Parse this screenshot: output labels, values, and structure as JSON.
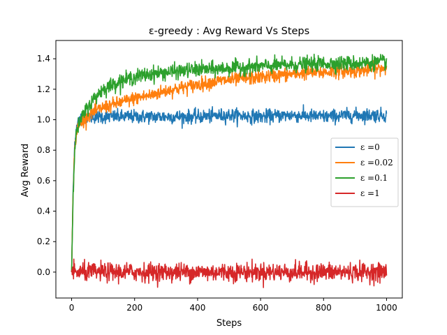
{
  "chart_data": {
    "type": "line",
    "title": "ε-greedy : Avg Reward Vs Steps",
    "xlabel": "Steps",
    "ylabel": "Avg Reward",
    "xlim": [
      -50,
      1050
    ],
    "ylim": [
      -0.17,
      1.52
    ],
    "xticks": [
      0,
      200,
      400,
      600,
      800,
      1000
    ],
    "yticks": [
      0.0,
      0.2,
      0.4,
      0.6,
      0.8,
      1.0,
      1.2,
      1.4
    ],
    "xtick_labels": [
      "0",
      "200",
      "400",
      "600",
      "800",
      "1000"
    ],
    "ytick_labels": [
      "0.0",
      "0.2",
      "0.4",
      "0.6",
      "0.8",
      "1.0",
      "1.2",
      "1.4"
    ],
    "grid": false,
    "legend_position": "center-right",
    "series": [
      {
        "name": "ε =0",
        "color": "#1f77b4",
        "x": [
          0,
          5,
          10,
          15,
          20,
          30,
          50,
          100,
          150,
          200,
          300,
          400,
          500,
          600,
          700,
          800,
          900,
          1000
        ],
        "y": [
          0.0,
          0.55,
          0.85,
          0.95,
          0.99,
          1.01,
          1.02,
          1.02,
          1.02,
          1.02,
          1.02,
          1.02,
          1.03,
          1.02,
          1.03,
          1.02,
          1.03,
          1.03
        ],
        "noise": 0.022
      },
      {
        "name": "ε =0.02",
        "color": "#ff7f0e",
        "x": [
          0,
          5,
          10,
          15,
          20,
          30,
          50,
          100,
          150,
          200,
          250,
          300,
          350,
          400,
          450,
          500,
          550,
          600,
          650,
          700,
          750,
          800,
          850,
          900,
          950,
          1000
        ],
        "y": [
          0.0,
          0.55,
          0.82,
          0.9,
          0.95,
          0.98,
          1.03,
          1.08,
          1.11,
          1.14,
          1.16,
          1.19,
          1.21,
          1.23,
          1.25,
          1.26,
          1.27,
          1.28,
          1.29,
          1.3,
          1.31,
          1.31,
          1.32,
          1.32,
          1.33,
          1.34
        ],
        "noise": 0.022
      },
      {
        "name": "ε =0.1",
        "color": "#2ca02c",
        "x": [
          0,
          5,
          10,
          15,
          20,
          30,
          50,
          80,
          100,
          150,
          200,
          250,
          300,
          350,
          400,
          450,
          500,
          600,
          700,
          800,
          900,
          1000
        ],
        "y": [
          0.0,
          0.55,
          0.82,
          0.9,
          0.95,
          1.0,
          1.08,
          1.16,
          1.2,
          1.25,
          1.28,
          1.3,
          1.31,
          1.32,
          1.33,
          1.33,
          1.34,
          1.35,
          1.36,
          1.37,
          1.37,
          1.38
        ],
        "noise": 0.024
      },
      {
        "name": "ε =1",
        "color": "#d62728",
        "x": [
          0,
          1000
        ],
        "y": [
          0.0,
          0.0
        ],
        "noise": 0.03
      }
    ]
  }
}
